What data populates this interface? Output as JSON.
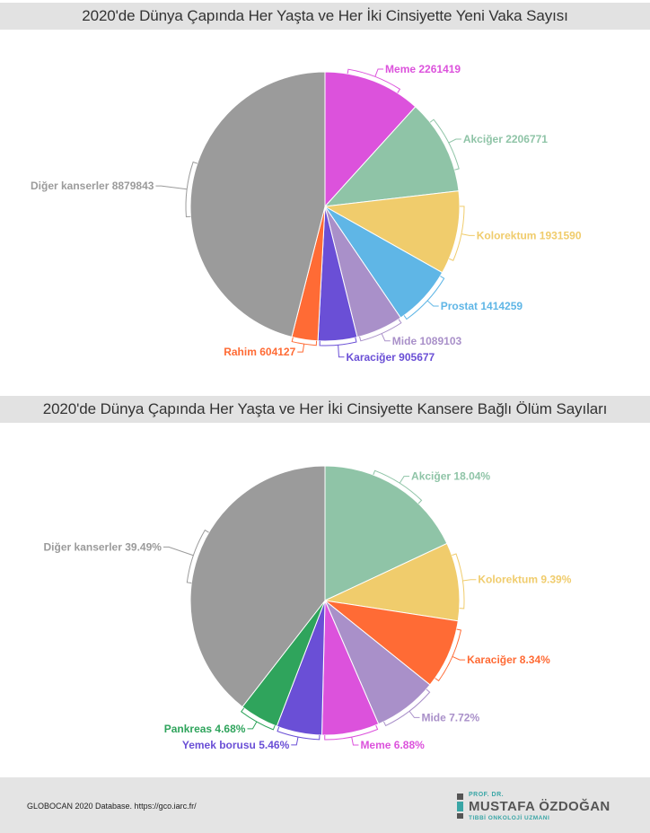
{
  "chart_data": [
    {
      "type": "pie",
      "title": "2020'de Dünya Çapında Her Yaşta ve Her İki Cinsiyette Yeni Vaka Sayısı",
      "slices": [
        {
          "label": "Meme",
          "value": 2261419,
          "display": "Meme 2261419",
          "color": "#dc52dc"
        },
        {
          "label": "Akciğer",
          "value": 2206771,
          "display": "Akciğer 2206771",
          "color": "#8fc4a7"
        },
        {
          "label": "Kolorektum",
          "value": 1931590,
          "display": "Kolorektum 1931590",
          "color": "#f0cc6c"
        },
        {
          "label": "Prostat",
          "value": 1414259,
          "display": "Prostat 1414259",
          "color": "#5fb6e6"
        },
        {
          "label": "Mide",
          "value": 1089103,
          "display": "Mide 1089103",
          "color": "#a990c9"
        },
        {
          "label": "Karaciğer",
          "value": 905677,
          "display": "Karaciğer 905677",
          "color": "#6a4fd6"
        },
        {
          "label": "Rahim",
          "value": 604127,
          "display": "Rahim 604127",
          "color": "#ff6b35"
        },
        {
          "label": "Diğer kanserler",
          "value": 8879843,
          "display": "Diğer kanserler 8879843",
          "color": "#9b9b9b"
        }
      ]
    },
    {
      "type": "pie",
      "title": "2020'de Dünya Çapında Her Yaşta ve Her İki Cinsiyette Kansere Bağlı Ölüm Sayıları",
      "slices": [
        {
          "label": "Akciğer",
          "value": 18.04,
          "display": "Akciğer 18.04%",
          "color": "#8fc4a7"
        },
        {
          "label": "Kolorektum",
          "value": 9.39,
          "display": "Kolorektum 9.39%",
          "color": "#f0cc6c"
        },
        {
          "label": "Karaciğer",
          "value": 8.34,
          "display": "Karaciğer 8.34%",
          "color": "#ff6b35"
        },
        {
          "label": "Mide",
          "value": 7.72,
          "display": "Mide 7.72%",
          "color": "#a990c9"
        },
        {
          "label": "Meme",
          "value": 6.88,
          "display": "Meme 6.88%",
          "color": "#dc52dc"
        },
        {
          "label": "Yemek borusu",
          "value": 5.46,
          "display": "Yemek borusu 5.46%",
          "color": "#6a4fd6"
        },
        {
          "label": "Pankreas",
          "value": 4.68,
          "display": "Pankreas 4.68%",
          "color": "#2fa45c"
        },
        {
          "label": "Diğer kanserler",
          "value": 39.49,
          "display": "Diğer kanserler 39.49%",
          "color": "#9b9b9b"
        }
      ]
    }
  ],
  "footer": {
    "source": "GLOBOCAN 2020 Database. https://gco.iarc.fr/",
    "logo_prefix": "PROF. DR.",
    "logo_name": "MUSTAFA ÖZDOĞAN",
    "logo_subtitle": "TIBBİ ONKOLOJİ UZMANI",
    "logo_colors": [
      "#555555",
      "#3aa6a6",
      "#555555"
    ]
  }
}
